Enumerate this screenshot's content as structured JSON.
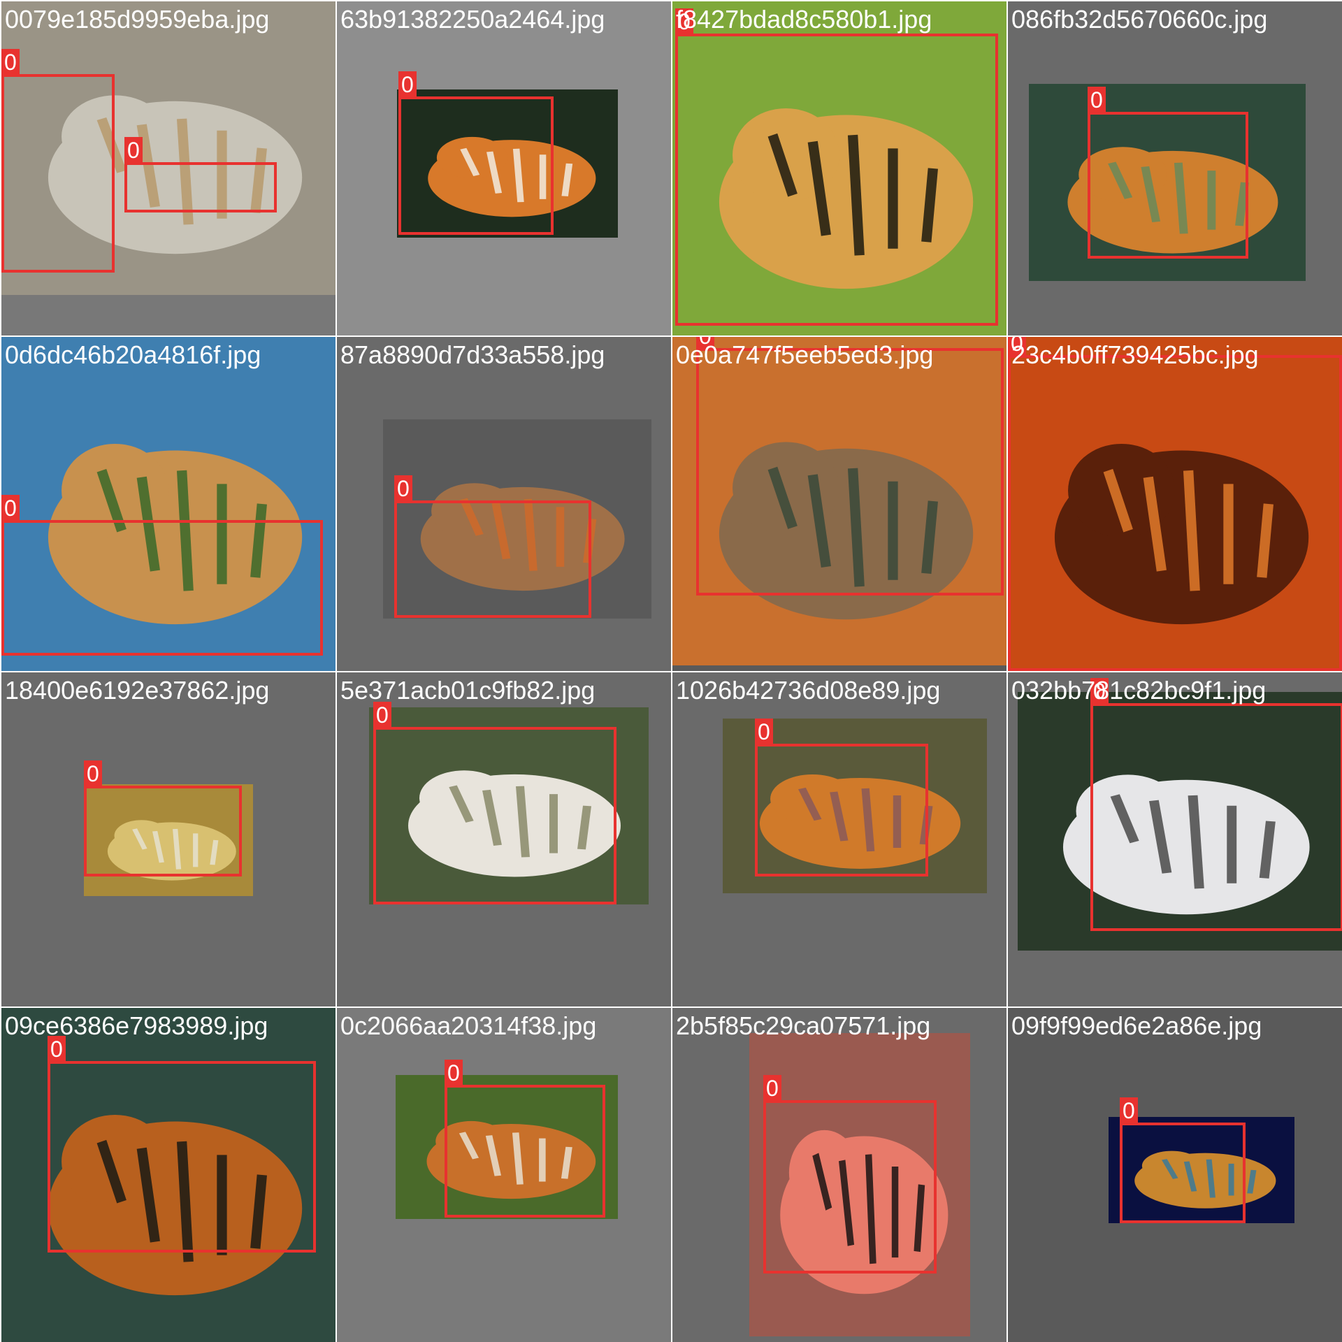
{
  "tiles": [
    {
      "filename": "0079e185d9959eba.jpg",
      "bg": "#787878",
      "photo_colors": [
        "#9a9486",
        "#c8c4b8",
        "#b89a6c"
      ],
      "boxes": [
        {
          "label": "0"
        },
        {
          "label": "0"
        }
      ]
    },
    {
      "filename": "63b91382250a2464.jpg",
      "bg": "#8e8e8e",
      "photo_colors": [
        "#1e2d1e",
        "#d8792a",
        "#f2ece0"
      ],
      "boxes": [
        {
          "label": "0"
        }
      ]
    },
    {
      "filename": "f8427bdad8c580b1.jpg",
      "bg": "#7a7a7a",
      "photo_colors": [
        "#7fa83a",
        "#d9a14a",
        "#1c1a10"
      ],
      "boxes": [
        {
          "label": "0"
        }
      ]
    },
    {
      "filename": "086fb32d5670660c.jpg",
      "bg": "#6a6a6a",
      "photo_colors": [
        "#2e4a3a",
        "#cf7f2e",
        "#6a8a5a"
      ],
      "boxes": [
        {
          "label": "0"
        }
      ]
    },
    {
      "filename": "0d6dc46b20a4816f.jpg",
      "bg": "#7a7a7a",
      "photo_colors": [
        "#3f7fb0",
        "#c8914e",
        "#3a6a2a"
      ],
      "boxes": [
        {
          "label": "0"
        }
      ]
    },
    {
      "filename": "87a8890d7d33a558.jpg",
      "bg": "#6a6a6a",
      "photo_colors": [
        "#5a5a5a",
        "#a07048",
        "#d06a2a"
      ],
      "boxes": [
        {
          "label": "0"
        }
      ]
    },
    {
      "filename": "0e0a747f5eeb5ed3.jpg",
      "bg": "#5a5a5a",
      "photo_colors": [
        "#c9702e",
        "#8a6a4a",
        "#3a4a3a"
      ],
      "boxes": [
        {
          "label": "0"
        }
      ]
    },
    {
      "filename": "23c4b0ff739425bc.jpg",
      "bg": "#2a1a10",
      "photo_colors": [
        "#c84a14",
        "#5a200a",
        "#e07a2a"
      ],
      "boxes": [
        {
          "label": "0"
        }
      ]
    },
    {
      "filename": "18400e6192e37862.jpg",
      "bg": "#6a6a6a",
      "photo_colors": [
        "#a88a3a",
        "#d8c070",
        "#e6e2d0"
      ],
      "boxes": [
        {
          "label": "0"
        }
      ]
    },
    {
      "filename": "5e371acb01c9fb82.jpg",
      "bg": "#6a6a6a",
      "photo_colors": [
        "#4a5a3a",
        "#e8e4dc",
        "#8a8a6a"
      ],
      "boxes": [
        {
          "label": "0"
        }
      ]
    },
    {
      "filename": "1026b42736d08e89.jpg",
      "bg": "#6a6a6a",
      "photo_colors": [
        "#5a5a3a",
        "#d07a2a",
        "#8a5a5a"
      ],
      "boxes": [
        {
          "label": "0"
        }
      ]
    },
    {
      "filename": "032bb781c82bc9f1.jpg",
      "bg": "#6a6a6a",
      "photo_colors": [
        "#2a3a2a",
        "#e6e6e8",
        "#4a4a4a"
      ],
      "boxes": [
        {
          "label": "0"
        }
      ]
    },
    {
      "filename": "09ce6386e7983989.jpg",
      "bg": "#3a5a4a",
      "photo_colors": [
        "#2e4a40",
        "#b8601e",
        "#1a1a14"
      ],
      "boxes": [
        {
          "label": "0"
        }
      ]
    },
    {
      "filename": "0c2066aa20314f38.jpg",
      "bg": "#7a7a7a",
      "photo_colors": [
        "#4a6a2a",
        "#c8702a",
        "#e8e0d0"
      ],
      "boxes": [
        {
          "label": "0"
        }
      ]
    },
    {
      "filename": "2b5f85c29ca07571.jpg",
      "bg": "#6a6a6a",
      "photo_colors": [
        "#9a5a50",
        "#e87a6a",
        "#1a1414"
      ],
      "boxes": [
        {
          "label": "0"
        }
      ]
    },
    {
      "filename": "09f9f99ed6e2a86e.jpg",
      "bg": "#5a5a5a",
      "photo_colors": [
        "#0a1040",
        "#c8862e",
        "#3a7a9a"
      ],
      "boxes": [
        {
          "label": "0"
        }
      ]
    }
  ]
}
